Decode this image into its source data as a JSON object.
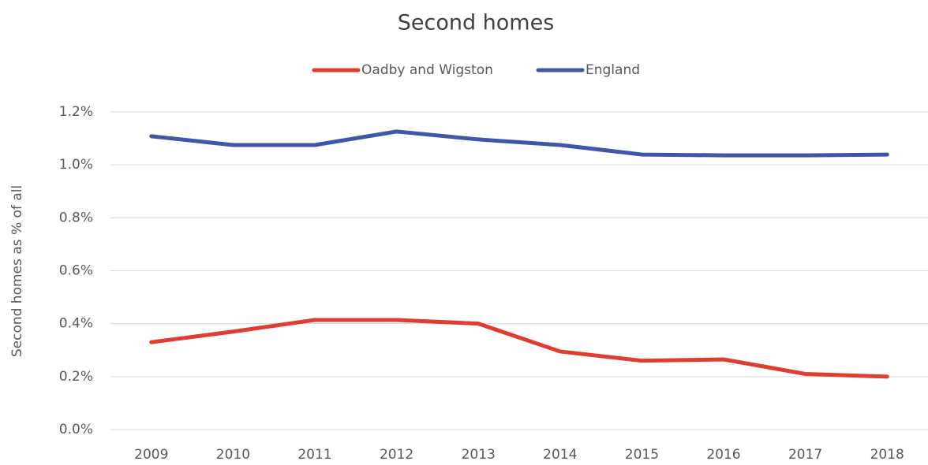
{
  "chart_data": {
    "type": "line",
    "title": "Second homes",
    "y_label": "Second homes as % of all",
    "categories": [
      "2009",
      "2010",
      "2011",
      "2012",
      "2013",
      "2014",
      "2015",
      "2016",
      "2017",
      "2018"
    ],
    "series": [
      {
        "name": "Oadby and Wigston",
        "color": "#e03c31",
        "values": [
          0.33,
          0.37,
          0.414,
          0.414,
          0.4,
          0.295,
          0.26,
          0.265,
          0.21,
          0.2
        ]
      },
      {
        "name": "England",
        "color": "#3f57a6",
        "values": [
          1.108,
          1.075,
          1.075,
          1.126,
          1.096,
          1.075,
          1.039,
          1.036,
          1.036,
          1.039
        ]
      }
    ],
    "ylim": [
      0,
      1.2
    ],
    "yticks": [
      {
        "value": 0,
        "label": "0.0%"
      },
      {
        "value": 0.2,
        "label": "0.2%"
      },
      {
        "value": 0.4,
        "label": "0.4%"
      },
      {
        "value": 0.6,
        "label": "0.6%"
      },
      {
        "value": 0.8,
        "label": "0.8%"
      },
      {
        "value": 1.0,
        "label": "1.0%"
      },
      {
        "value": 1.2,
        "label": "1.2%"
      }
    ],
    "grid": true,
    "legend": "top"
  }
}
